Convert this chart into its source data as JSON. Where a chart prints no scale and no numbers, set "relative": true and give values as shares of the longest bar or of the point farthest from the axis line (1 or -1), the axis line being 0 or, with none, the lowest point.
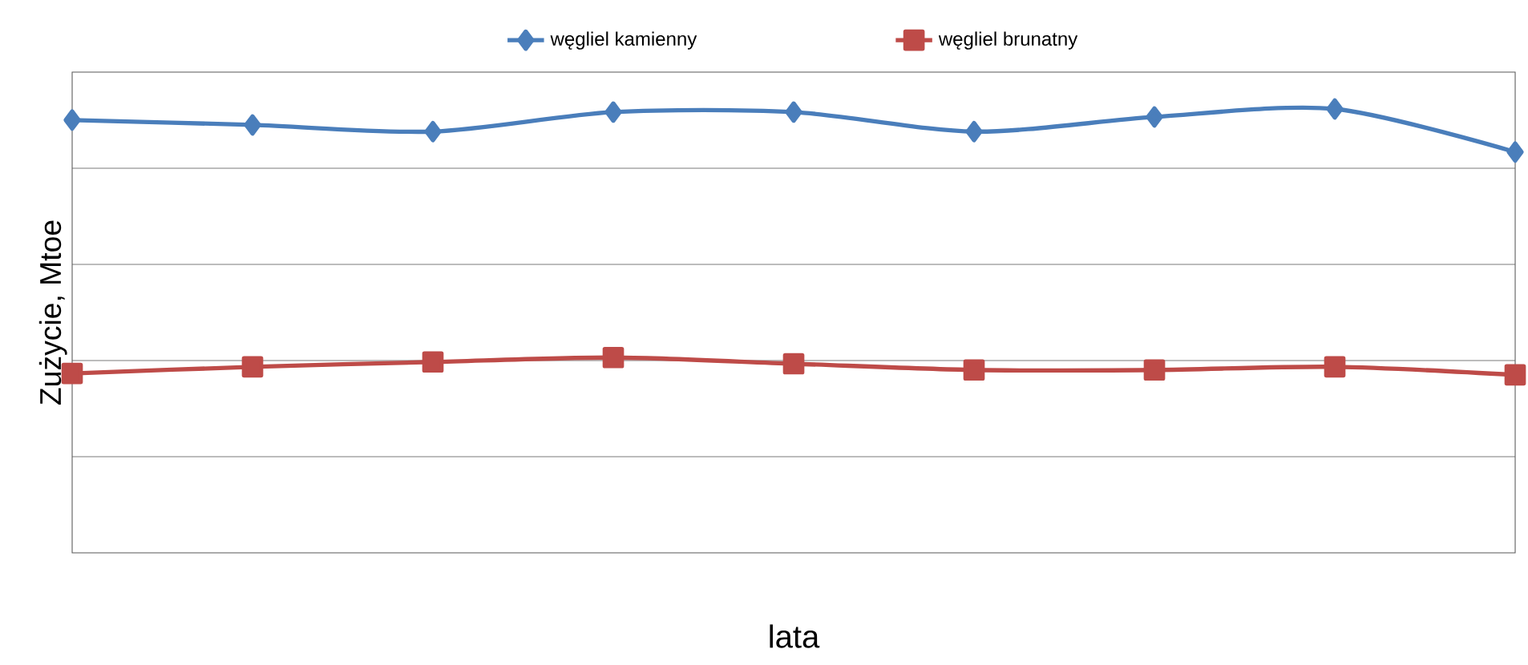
{
  "chart_data": {
    "type": "line",
    "relative": true,
    "xlabel": "lata",
    "ylabel": "Zużycie, Mtoe",
    "categories": [
      null,
      null,
      null,
      null,
      null,
      null,
      null,
      null,
      null
    ],
    "grid": "y",
    "legend": "top",
    "series": [
      {
        "name": "węgliel kamienny",
        "color": "#4a7ebb",
        "marker": "diamond",
        "values": [
          0.975,
          0.964,
          0.949,
          0.993,
          0.993,
          0.949,
          0.982,
          1,
          0.903
        ]
      },
      {
        "name": "węgliel brunatny",
        "color": "#be4b48",
        "marker": "square",
        "values": [
          0.404,
          0.419,
          0.43,
          0.44,
          0.426,
          0.412,
          0.412,
          0.419,
          0.401
        ]
      }
    ]
  }
}
